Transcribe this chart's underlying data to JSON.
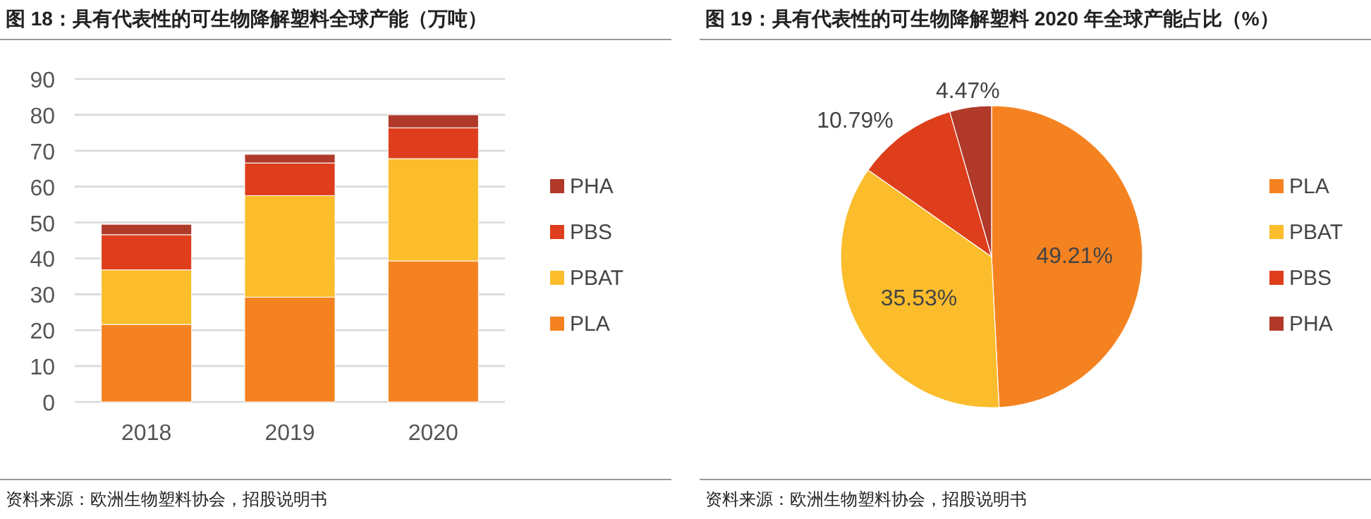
{
  "chart_data": [
    {
      "type": "bar",
      "title": "图 18：具有代表性的可生物降解塑料全球产能（万吨）",
      "categories": [
        "2018",
        "2019",
        "2020"
      ],
      "stacked": true,
      "ylim": [
        0,
        90
      ],
      "yticks": [
        0,
        10,
        20,
        30,
        40,
        50,
        60,
        70,
        80,
        90
      ],
      "grid": "y",
      "legend": "right",
      "series": [
        {
          "name": "PLA",
          "color": "#f58220",
          "values": [
            21.6,
            29.2,
            39.3
          ]
        },
        {
          "name": "PBAT",
          "color": "#fbbd2c",
          "values": [
            15.2,
            28.3,
            28.5
          ]
        },
        {
          "name": "PBS",
          "color": "#de3e1c",
          "values": [
            9.8,
            9.1,
            8.6
          ]
        },
        {
          "name": "PHA",
          "color": "#b0392a",
          "values": [
            2.9,
            2.4,
            3.6
          ]
        }
      ],
      "annotations": [
        "资料来源：欧洲生物塑料协会，招股说明书"
      ]
    },
    {
      "type": "pie",
      "title": "图 19：具有代表性的可生物降解塑料 2020 年全球产能占比（%）",
      "categories": [
        "PLA",
        "PBAT",
        "PBS",
        "PHA"
      ],
      "values": [
        49.21,
        35.53,
        10.79,
        4.47
      ],
      "colors": [
        "#f58220",
        "#fbbd2c",
        "#de3e1c",
        "#b0392a"
      ],
      "value_labels": [
        "49.21%",
        "35.53%",
        "10.79%",
        "4.47%"
      ],
      "legend": "right",
      "annotations": [
        "资料来源：欧洲生物塑料协会，招股说明书"
      ]
    }
  ]
}
